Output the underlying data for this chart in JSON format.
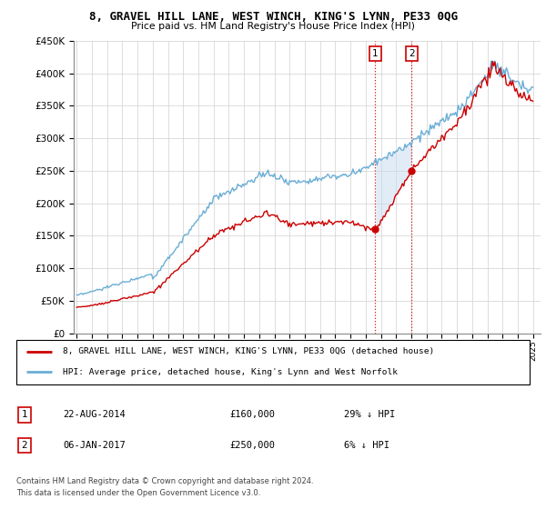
{
  "title": "8, GRAVEL HILL LANE, WEST WINCH, KING'S LYNN, PE33 0QG",
  "subtitle": "Price paid vs. HM Land Registry's House Price Index (HPI)",
  "legend_line1": "8, GRAVEL HILL LANE, WEST WINCH, KING'S LYNN, PE33 0QG (detached house)",
  "legend_line2": "HPI: Average price, detached house, King's Lynn and West Norfolk",
  "transaction1_date": "22-AUG-2014",
  "transaction1_price": "£160,000",
  "transaction1_hpi": "29% ↓ HPI",
  "transaction2_date": "06-JAN-2017",
  "transaction2_price": "£250,000",
  "transaction2_hpi": "6% ↓ HPI",
  "footnote_line1": "Contains HM Land Registry data © Crown copyright and database right 2024.",
  "footnote_line2": "This data is licensed under the Open Government Licence v3.0.",
  "hpi_color": "#6baed6",
  "price_color": "#cc0000",
  "shaded_color": "#c6dbef",
  "marker_color": "#cc0000",
  "vline_color": "#cc0000",
  "ylim_min": 0,
  "ylim_max": 450000,
  "t1_year": 2014.638,
  "t2_year": 2017.014,
  "t1_price": 160000,
  "t2_price": 250000
}
